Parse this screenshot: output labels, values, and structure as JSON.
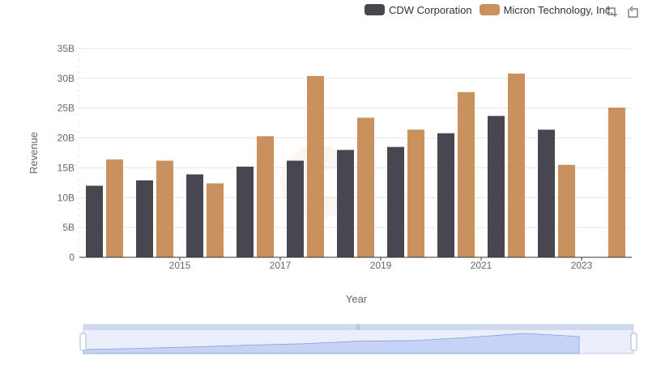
{
  "chart_data": {
    "type": "bar",
    "xlabel": "Year",
    "ylabel": "Revenue",
    "ylim": [
      0,
      35000000000
    ],
    "yticks": [
      {
        "value": 0,
        "label": "0"
      },
      {
        "value": 5000000000,
        "label": "5B"
      },
      {
        "value": 10000000000,
        "label": "10B"
      },
      {
        "value": 15000000000,
        "label": "15B"
      },
      {
        "value": 20000000000,
        "label": "20B"
      },
      {
        "value": 25000000000,
        "label": "25B"
      },
      {
        "value": 30000000000,
        "label": "30B"
      },
      {
        "value": 35000000000,
        "label": "35B"
      }
    ],
    "xticks": [
      "2015",
      "2017",
      "2019",
      "2021",
      "2023"
    ],
    "categories": [
      "2014",
      "2015",
      "2016",
      "2017",
      "2018",
      "2019",
      "2020",
      "2021",
      "2022",
      "2023",
      "2024"
    ],
    "series": [
      {
        "name": "CDW Corporation",
        "color": "#484750",
        "values": [
          12000000000,
          12900000000,
          13900000000,
          15200000000,
          16200000000,
          18000000000,
          18500000000,
          20800000000,
          23700000000,
          21400000000,
          null
        ]
      },
      {
        "name": "Micron Technology, Inc.",
        "color": "#c8915d",
        "values": [
          16400000000,
          16200000000,
          12400000000,
          20300000000,
          30400000000,
          23400000000,
          21400000000,
          27700000000,
          30800000000,
          15500000000,
          25100000000
        ]
      }
    ],
    "grid": true,
    "legend_position": "top-right"
  },
  "colors": {
    "cdw": "#484750",
    "micron": "#c8915d",
    "grid": "#e6e6e6",
    "zoom_fill": "#d6e0fa",
    "zoom_handle": "#cfd8ec"
  },
  "toolbar": {
    "icons": [
      "zoom-select-icon",
      "restore-icon"
    ]
  }
}
